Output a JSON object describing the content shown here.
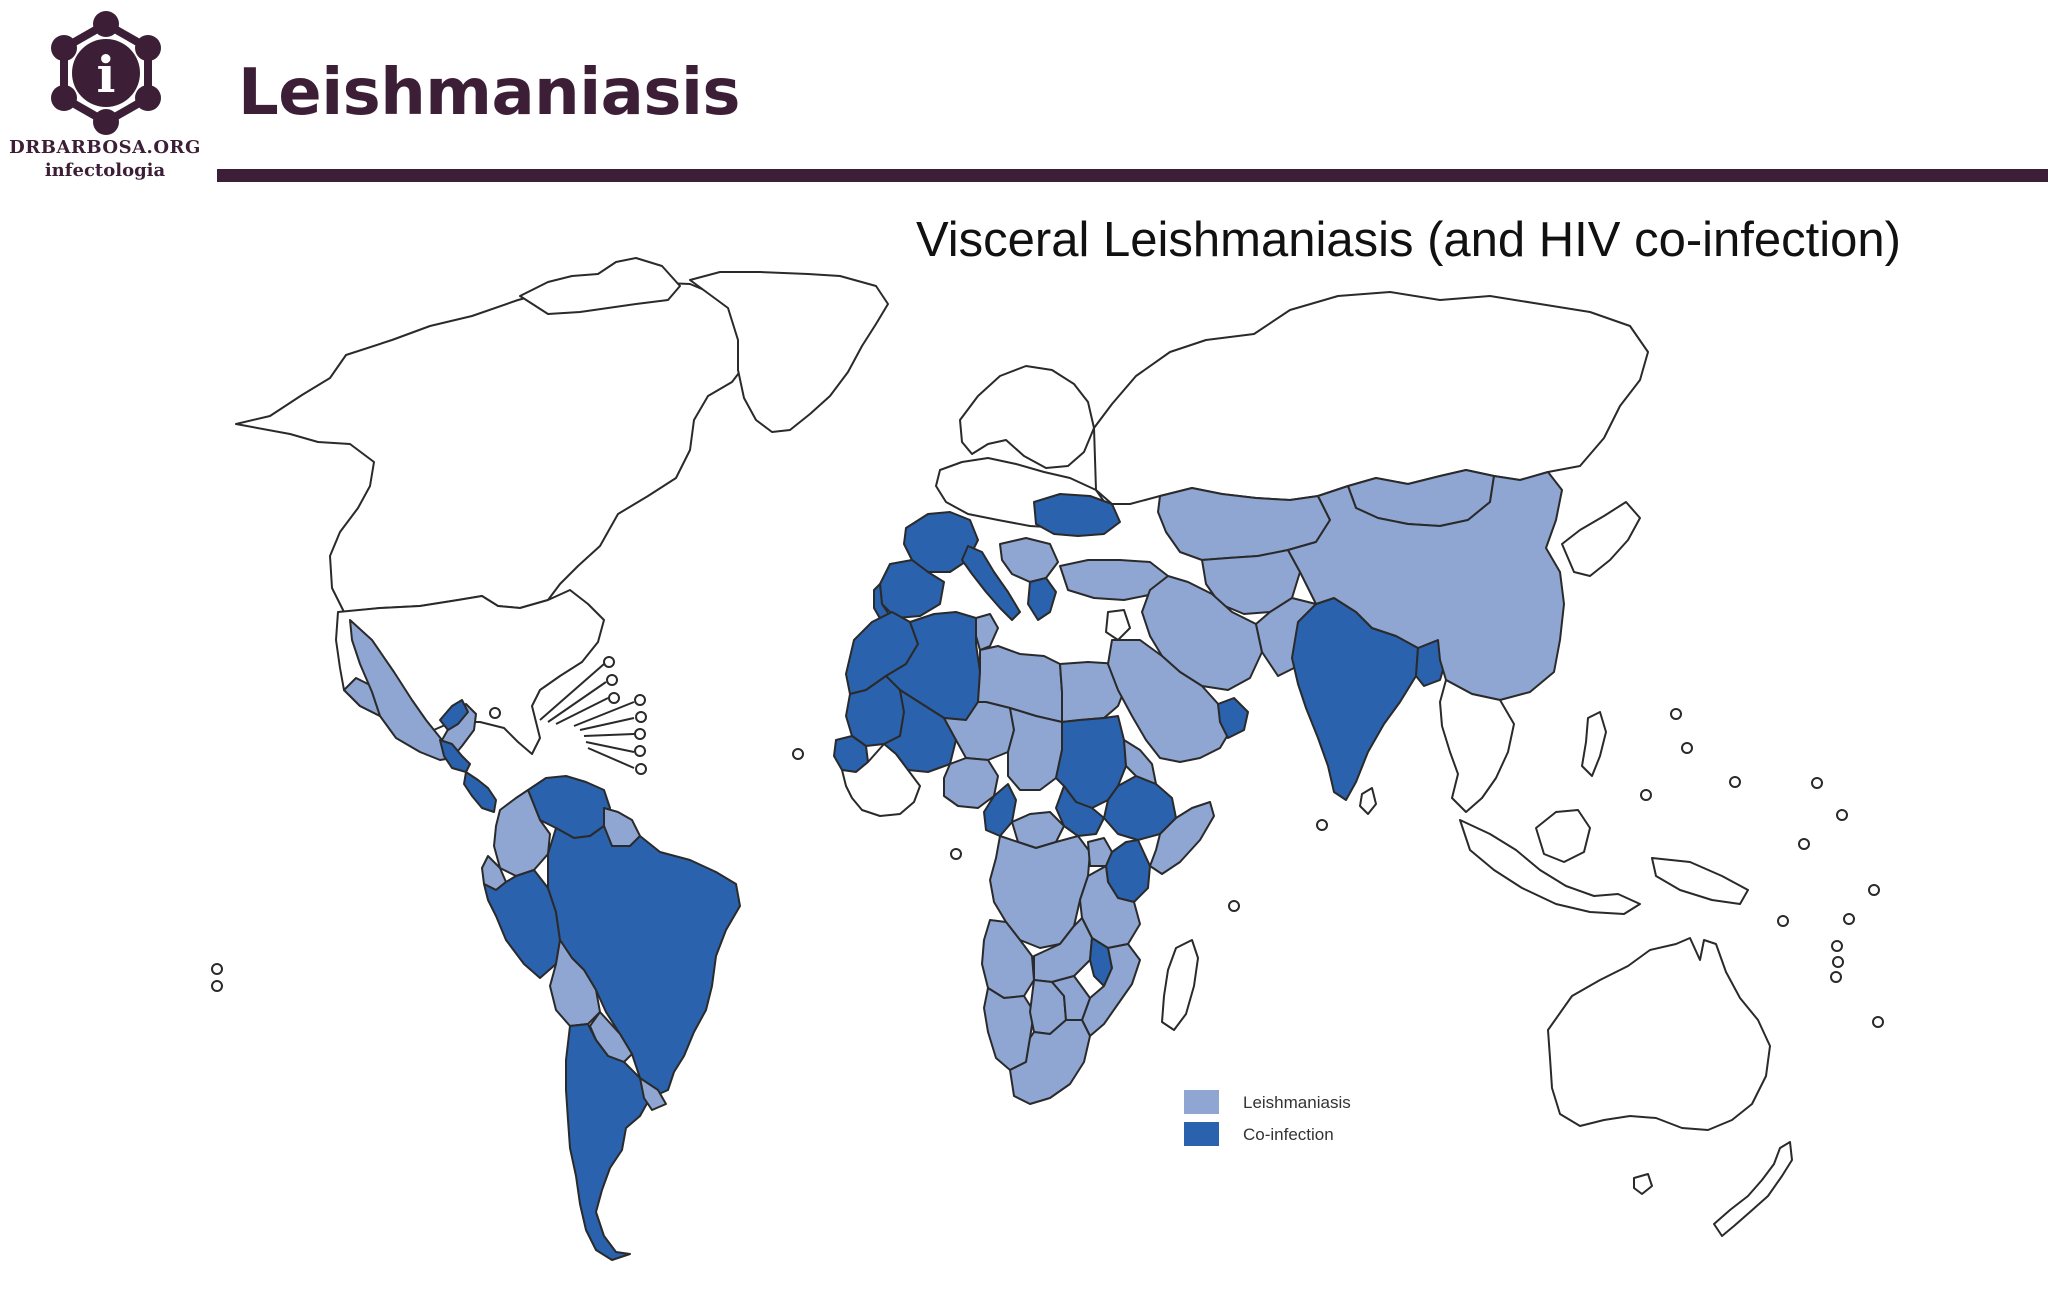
{
  "header": {
    "logo": {
      "name": "DRBARBOSA.ORG",
      "subtitle": "infectologia",
      "glyph": "i"
    },
    "title": "Leishmaniasis"
  },
  "map": {
    "title": "Visceral Leishmaniasis (and HIV co-infection)",
    "colors": {
      "leishmaniasis": "#8fa5d2",
      "co_infection": "#2b62ad",
      "no_data": "#ffffff",
      "border": "#2a2a2a"
    },
    "legend": [
      {
        "label": "Leishmaniasis",
        "category": "leishmaniasis"
      },
      {
        "label": "Co-infection",
        "category": "co_infection"
      }
    ],
    "regions": {
      "co_infection": [
        "Spain",
        "Portugal",
        "France",
        "Italy",
        "Greece",
        "Ukraine",
        "Morocco",
        "Algeria",
        "Mauritania",
        "Mali",
        "Senegal",
        "Burkina Faso",
        "Cameroon",
        "Sudan",
        "South Sudan",
        "Ethiopia",
        "Kenya",
        "Malawi",
        "Somalia",
        "India",
        "Bangladesh",
        "Nepal",
        "Mexico (Yucatan)",
        "Guatemala",
        "Honduras",
        "Colombia",
        "Venezuela",
        "Peru",
        "Brazil",
        "Argentina",
        "Chile"
      ],
      "leishmaniasis": [
        "United States (southwest)",
        "Mexico",
        "Ecuador",
        "Bolivia",
        "Paraguay",
        "Uruguay",
        "Guyana",
        "Tunisia",
        "Libya",
        "Egypt",
        "Niger",
        "Chad",
        "Nigeria",
        "Central African Republic",
        "Eritrea",
        "Uganda",
        "Tanzania",
        "DR Congo",
        "Angola",
        "Zambia",
        "Namibia",
        "Botswana",
        "Zimbabwe",
        "Mozambique",
        "South Africa",
        "Turkey",
        "Iran",
        "Iraq",
        "Saudi Arabia",
        "Yemen",
        "Oman",
        "Kazakhstan",
        "Uzbekistan",
        "Turkmenistan",
        "Afghanistan",
        "Pakistan",
        "Mongolia",
        "China"
      ]
    }
  }
}
